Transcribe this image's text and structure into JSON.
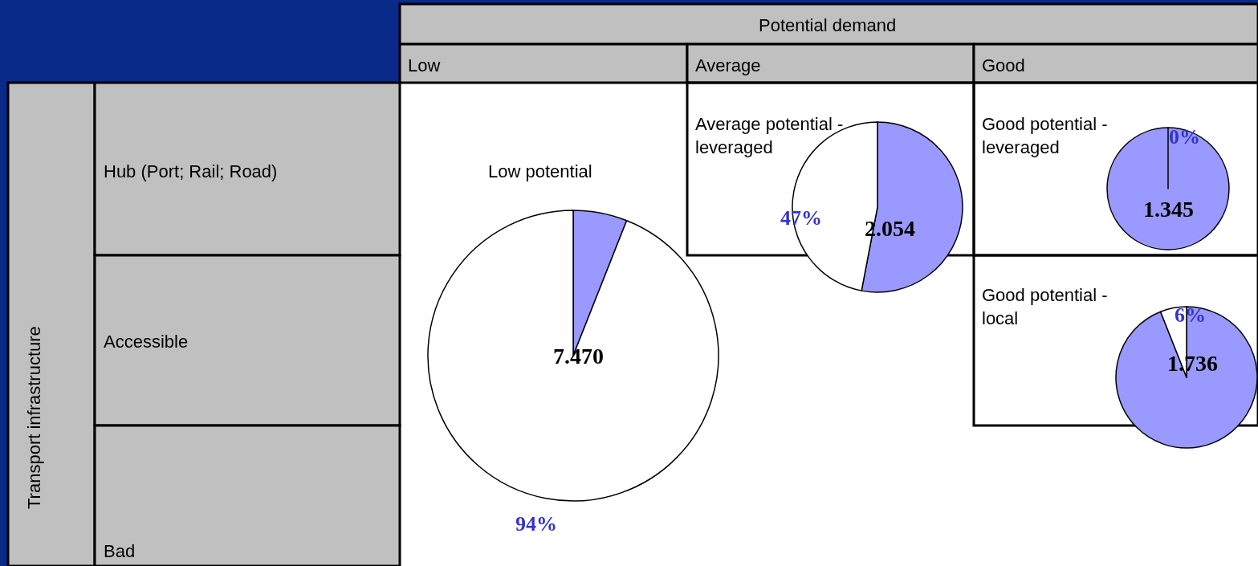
{
  "chart_data": [
    {
      "type": "other",
      "title": "Potential demand",
      "ylabel": "Transport infrastructure",
      "categories": [
        "Low",
        "Average",
        "Good"
      ],
      "y_categories": [
        "Hub (Port; Rail; Road)",
        "Accessible",
        "Bad"
      ]
    },
    {
      "type": "pie",
      "title": "Low potential",
      "categories": [
        null,
        null
      ],
      "values": [
        6,
        94
      ],
      "colors": [
        "#9999ff",
        "#ffffff"
      ],
      "value_labels": [
        null,
        "94%"
      ],
      "annotations": [
        "7.470"
      ]
    },
    {
      "type": "pie",
      "title": "Average potential - leveraged",
      "categories": [
        null,
        null
      ],
      "values": [
        53,
        47
      ],
      "colors": [
        "#9999ff",
        "#ffffff"
      ],
      "value_labels": [
        null,
        "47%"
      ],
      "annotations": [
        "2.054"
      ]
    },
    {
      "type": "pie",
      "title": "Good potential - leveraged",
      "categories": [
        null,
        null
      ],
      "values": [
        100,
        0
      ],
      "colors": [
        "#9999ff",
        "#ffffff"
      ],
      "value_labels": [
        null,
        "0%"
      ],
      "annotations": [
        "1.345"
      ]
    },
    {
      "type": "pie",
      "title": "Good potential - local",
      "categories": [
        null,
        null
      ],
      "values": [
        94,
        6
      ],
      "colors": [
        "#9999ff",
        "#ffffff"
      ],
      "value_labels": [
        null,
        "6%"
      ],
      "annotations": [
        "1.736"
      ]
    }
  ]
}
